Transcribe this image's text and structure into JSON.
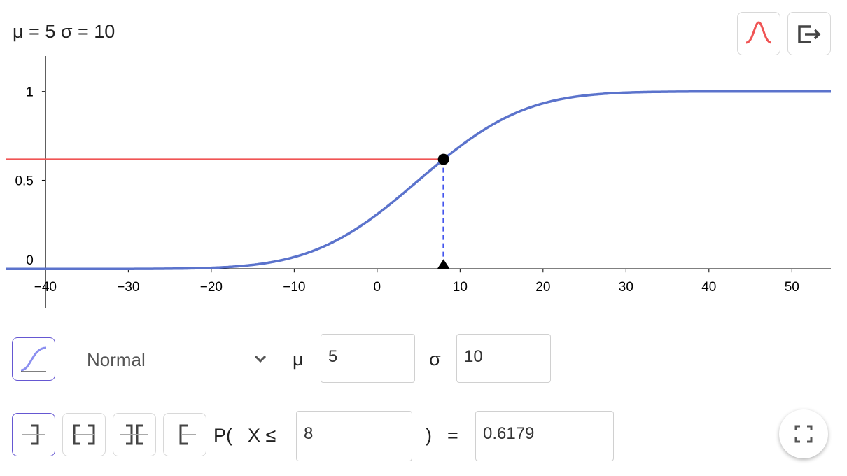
{
  "header": {
    "title": "μ = 5 σ = 10"
  },
  "chart_data": {
    "type": "cdf",
    "mu": 5,
    "sigma": 10,
    "x_point": 8,
    "probability": 0.6179,
    "xlim": [
      -44.8,
      54.7
    ],
    "ylim": [
      -0.22,
      1.2
    ],
    "xticks": [
      {
        "value": -40,
        "label": "−40"
      },
      {
        "value": -30,
        "label": "−30"
      },
      {
        "value": -20,
        "label": "−20"
      },
      {
        "value": -10,
        "label": "−10"
      },
      0,
      10,
      20,
      30,
      40,
      50
    ],
    "yticks": [
      0,
      0.5,
      1
    ],
    "color": "#5b73cc",
    "highlight_color": "#f05454",
    "grid": false
  },
  "controls": {
    "distribution": "Normal",
    "param_labels": [
      "μ",
      "σ"
    ],
    "probability_prefix": "P(",
    "variable": "X ≤",
    "close_paren": ")",
    "equals": "="
  }
}
